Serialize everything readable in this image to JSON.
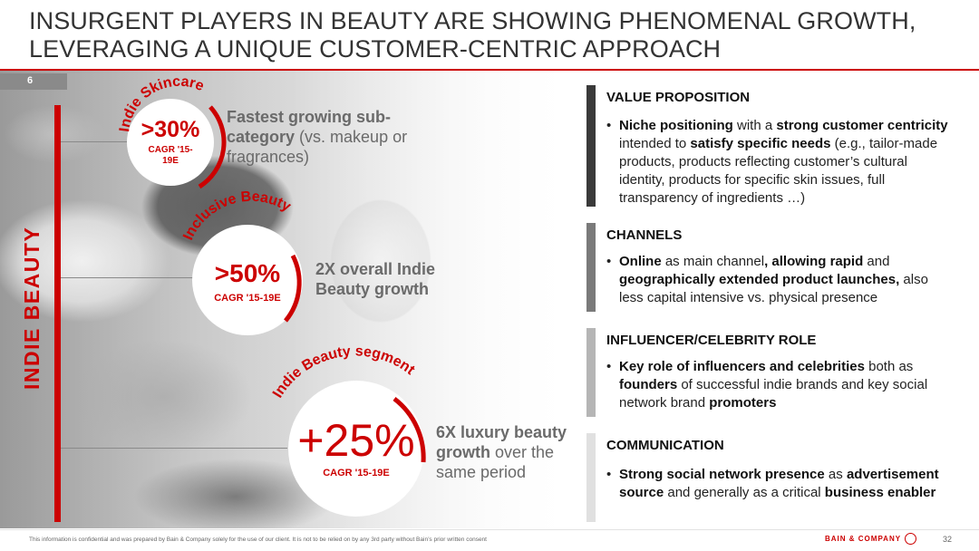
{
  "title": {
    "line1": "INSURGENT PLAYERS IN BEAUTY ARE SHOWING PHENOMENAL GROWTH,",
    "line2": "LEVERAGING A UNIQUE CUSTOMER-CENTRIC APPROACH"
  },
  "page_tag": "6",
  "vertical_label": "INDIE BEAUTY",
  "kpis": [
    {
      "arc_label": "Indie Skincare",
      "value": ">30%",
      "cagr": "CAGR '15-19E",
      "cagr_line1": "CAGR '15-",
      "cagr_line2": "19E",
      "desc_bold": "Fastest growing sub-category",
      "desc_rest": " (vs. makeup or fragrances)"
    },
    {
      "arc_label": "Inclusive Beauty",
      "value": ">50%",
      "cagr": "CAGR '15-19E",
      "desc_bold": "2X overall Indie Beauty growth",
      "desc_rest": ""
    },
    {
      "arc_label": "Indie Beauty segment",
      "value": "+25%",
      "cagr": "CAGR '15-19E",
      "desc_bold": "6X luxury beauty growth",
      "desc_rest": " over the same period"
    }
  ],
  "sections": [
    {
      "heading": "VALUE PROPOSITION",
      "bar_color": "#3a3a3a",
      "bullet": "•",
      "parts": [
        {
          "b": "Niche positioning"
        },
        {
          "t": " with a "
        },
        {
          "b": "strong customer centricity"
        },
        {
          "t": " intended to "
        },
        {
          "b": "satisfy specific needs"
        },
        {
          "t": " (e.g., tailor-made products, products reflecting customer’s cultural identity, products for specific skin issues, full transparency of ingredients …)"
        }
      ]
    },
    {
      "heading": "CHANNELS",
      "bar_color": "#7a7a7a",
      "bullet": "•",
      "parts": [
        {
          "b": "Online"
        },
        {
          "t": " as main channel"
        },
        {
          "b": ", allowing rapid"
        },
        {
          "t": " and "
        },
        {
          "b": "geographically extended product launches,"
        },
        {
          "t": " also less capital intensive vs. physical presence"
        }
      ]
    },
    {
      "heading": "INFLUENCER/CELEBRITY ROLE",
      "bar_color": "#b5b5b5",
      "bullet": "•",
      "parts": [
        {
          "b": "Key role of influencers and celebrities"
        },
        {
          "t": " both as "
        },
        {
          "b": "founders"
        },
        {
          "t": " of successful indie brands and key social network brand "
        },
        {
          "b": "promoters"
        }
      ]
    },
    {
      "heading": "COMMUNICATION",
      "bar_color": "#e0e0e0",
      "bullet": "•",
      "parts": [
        {
          "b": "Strong social network presence"
        },
        {
          "t": " as "
        },
        {
          "b": "advertisement source"
        },
        {
          "t": " and generally as a critical "
        },
        {
          "b": "business enabler"
        }
      ]
    }
  ],
  "footer": {
    "note": "This information is confidential and was prepared by Bain & Company solely for the use of our client. It is not to be relied on by any 3rd party without Bain’s prior written consent",
    "logo": "BAIN & COMPANY",
    "page": "32"
  },
  "colors": {
    "accent": "#cc0000",
    "title": "#333333",
    "muted": "#6a6a6a"
  }
}
